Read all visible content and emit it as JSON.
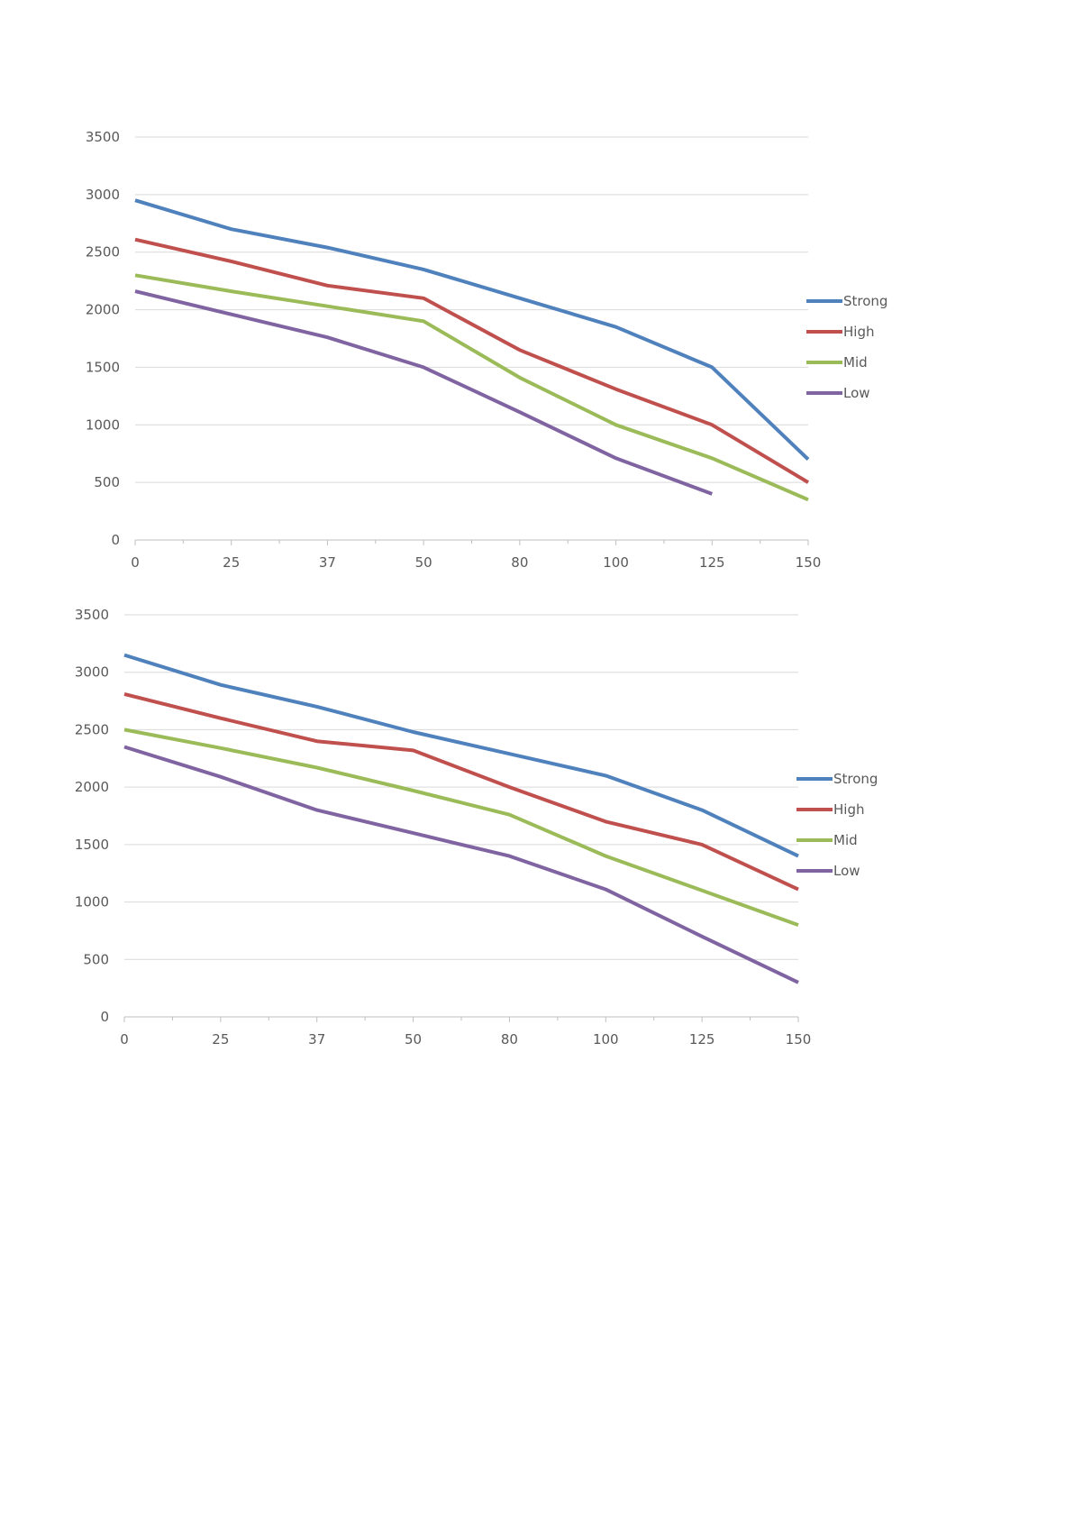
{
  "chart_data": [
    {
      "type": "line",
      "categories": [
        "0",
        "25",
        "37",
        "50",
        "80",
        "100",
        "125",
        "150"
      ],
      "ylim": [
        0,
        3500
      ],
      "yticks": [
        0,
        500,
        1000,
        1500,
        2000,
        2500,
        3000,
        3500
      ],
      "grid": true,
      "legend_position": "right",
      "series": [
        {
          "name": "Strong",
          "color": "#4f81bd",
          "values": [
            2950,
            2700,
            2540,
            2350,
            2100,
            1850,
            1500,
            700
          ]
        },
        {
          "name": "High",
          "color": "#c0504d",
          "values": [
            2610,
            2420,
            2210,
            2100,
            1650,
            1310,
            1000,
            500
          ]
        },
        {
          "name": "Mid",
          "color": "#9bbb59",
          "values": [
            2300,
            2160,
            2030,
            1900,
            1410,
            1000,
            710,
            350
          ]
        },
        {
          "name": "Low",
          "color": "#8064a2",
          "values": [
            2160,
            1960,
            1760,
            1500,
            1110,
            710,
            400,
            null
          ]
        }
      ]
    },
    {
      "type": "line",
      "categories": [
        "0",
        "25",
        "37",
        "50",
        "80",
        "100",
        "125",
        "150"
      ],
      "ylim": [
        0,
        3500
      ],
      "yticks": [
        0,
        500,
        1000,
        1500,
        2000,
        2500,
        3000,
        3500
      ],
      "grid": true,
      "legend_position": "right",
      "series": [
        {
          "name": "Strong",
          "color": "#4f81bd",
          "values": [
            3150,
            2890,
            2700,
            2480,
            2290,
            2100,
            1800,
            1400
          ]
        },
        {
          "name": "High",
          "color": "#c0504d",
          "values": [
            2810,
            2600,
            2400,
            2320,
            2000,
            1700,
            1500,
            1110
          ]
        },
        {
          "name": "Mid",
          "color": "#9bbb59",
          "values": [
            2500,
            2340,
            2170,
            1970,
            1760,
            1400,
            1100,
            800
          ]
        },
        {
          "name": "Low",
          "color": "#8064a2",
          "values": [
            2350,
            2090,
            1800,
            1600,
            1400,
            1110,
            700,
            300
          ]
        }
      ]
    }
  ]
}
